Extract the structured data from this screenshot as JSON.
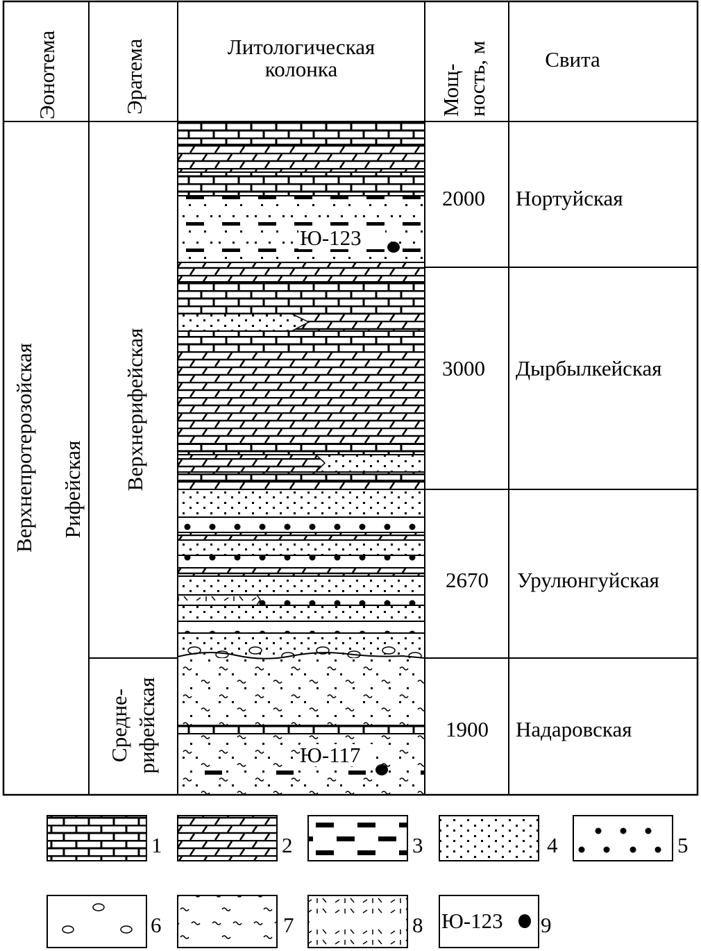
{
  "header": {
    "eonothem": "Эонотема",
    "erathem": "Эратема",
    "litho_line1": "Литологическая",
    "litho_line2": "колонка",
    "thickness_line1": "Мощ-",
    "thickness_line2": "ность, м",
    "suite": "Свита"
  },
  "eonothem_name": "Верхнепротерозойская",
  "group_name": "Рифейская",
  "erathems": [
    {
      "name": "Верхнерифейская"
    },
    {
      "line1": "Средне-",
      "line2": "рифейская"
    }
  ],
  "suites": [
    {
      "thickness": "2000",
      "name": "Нортуйская"
    },
    {
      "thickness": "3000",
      "name": "Дырбылкейская"
    },
    {
      "thickness": "2670",
      "name": "Урулюнгуйская"
    },
    {
      "thickness": "1900",
      "name": "Надаровская"
    }
  ],
  "samples": [
    {
      "label": "Ю-123"
    },
    {
      "label": "Ю-117"
    }
  ],
  "legend": [
    {
      "number": "1",
      "pattern": "limestone-brick"
    },
    {
      "number": "2",
      "pattern": "dolomite-slanted-brick"
    },
    {
      "number": "3",
      "pattern": "black-dashes"
    },
    {
      "number": "4",
      "pattern": "fine-dots"
    },
    {
      "number": "5",
      "pattern": "coarse-dots"
    },
    {
      "number": "6",
      "pattern": "pebbles-ovals"
    },
    {
      "number": "7",
      "pattern": "tildes"
    },
    {
      "number": "8",
      "pattern": "tuff-strokes"
    },
    {
      "number": "9",
      "pattern": "sample-point",
      "sample_label": "Ю-123"
    }
  ]
}
